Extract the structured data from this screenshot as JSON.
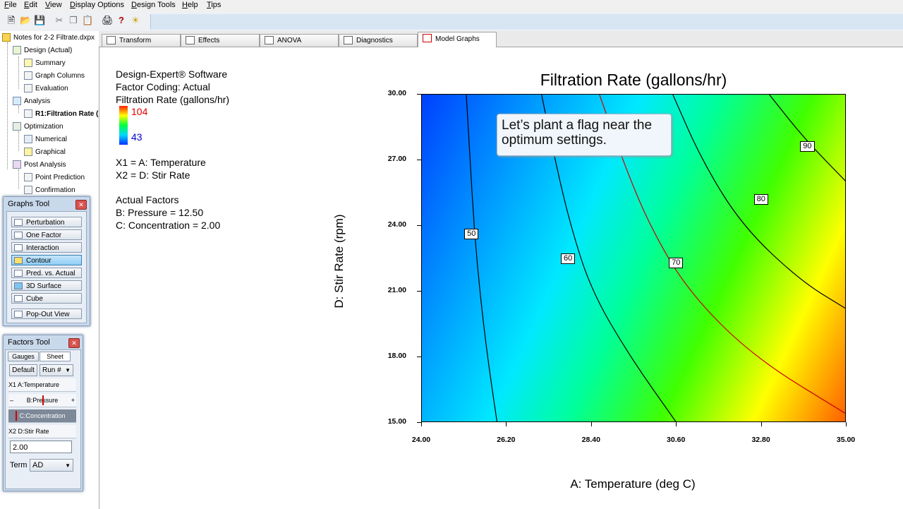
{
  "menu": [
    "File",
    "Edit",
    "View",
    "Display Options",
    "Design Tools",
    "Help",
    "Tips"
  ],
  "tree": {
    "root": "Notes for 2-2 Filtrate.dxpx",
    "items": [
      {
        "label": "Design (Actual)",
        "indent": 1
      },
      {
        "label": "Summary",
        "indent": 2
      },
      {
        "label": "Graph Columns",
        "indent": 2
      },
      {
        "label": "Evaluation",
        "indent": 2
      },
      {
        "label": "Analysis",
        "indent": 1
      },
      {
        "label": "R1:Filtration Rate (",
        "indent": 2
      },
      {
        "label": "Optimization",
        "indent": 1
      },
      {
        "label": "Numerical",
        "indent": 2
      },
      {
        "label": "Graphical",
        "indent": 2
      },
      {
        "label": "Post Analysis",
        "indent": 1
      },
      {
        "label": "Point Prediction",
        "indent": 2
      },
      {
        "label": "Confirmation",
        "indent": 2
      }
    ]
  },
  "graphs_tool": {
    "title": "Graphs Tool",
    "buttons": [
      "Perturbation",
      "One Factor",
      "Interaction",
      "Contour",
      "Pred. vs. Actual",
      "3D Surface",
      "Cube",
      "Pop-Out View"
    ],
    "active": "Contour"
  },
  "factors_tool": {
    "title": "Factors Tool",
    "tab_gauges": "Gauges",
    "tab_sheet": "Sheet",
    "default_btn": "Default",
    "run_select": "Run #",
    "rows": [
      {
        "prefix": "X1",
        "label": "A:Temperature"
      },
      {
        "prefix": "",
        "label": "B:Pressure"
      },
      {
        "prefix": "",
        "label": "C:Concentration"
      },
      {
        "prefix": "X2",
        "label": "D:Stir Rate"
      }
    ],
    "value_input": "2.00",
    "term_label": "Term",
    "term_value": "AD"
  },
  "tabs": [
    "Transform",
    "Effects",
    "ANOVA",
    "Diagnostics",
    "Model Graphs"
  ],
  "active_tab": "Model Graphs",
  "info": {
    "software": "Design-Expert® Software",
    "coding": "Factor Coding: Actual",
    "response": "Filtration Rate (gallons/hr)",
    "legend_high": "104",
    "legend_low": "43",
    "x1": "X1 = A: Temperature",
    "x2": "X2 = D: Stir Rate",
    "actual_factors": "Actual Factors",
    "b_factor": "B: Pressure = 12.50",
    "c_factor": "C: Concentration = 2.00"
  },
  "callout": "Let’s plant a flag near the optimum settings.",
  "chart_data": {
    "type": "contour",
    "title": "Filtration Rate (gallons/hr)",
    "xlabel": "A: Temperature (deg C)",
    "ylabel": "D: Stir Rate (rpm)",
    "xlim": [
      24.0,
      35.0
    ],
    "ylim": [
      15.0,
      30.0
    ],
    "xticks": [
      "24.00",
      "26.20",
      "28.40",
      "30.60",
      "32.80",
      "35.00"
    ],
    "yticks": [
      "15.00",
      "18.00",
      "21.00",
      "24.00",
      "27.00",
      "30.00"
    ],
    "colorscale": {
      "low_color": "#0000ff",
      "high_color": "#ff3000",
      "min": 43,
      "max": 104
    },
    "contours": [
      {
        "level": "50",
        "color": "#000000",
        "points": [
          [
            25.15,
            30.0
          ],
          [
            25.25,
            27.0
          ],
          [
            25.35,
            24.0
          ],
          [
            25.5,
            21.0
          ],
          [
            25.7,
            18.0
          ],
          [
            25.95,
            15.0
          ]
        ]
      },
      {
        "level": "60",
        "color": "#000000",
        "points": [
          [
            27.1,
            30.0
          ],
          [
            27.45,
            27.0
          ],
          [
            27.85,
            24.0
          ],
          [
            28.4,
            21.0
          ],
          [
            29.4,
            18.0
          ],
          [
            30.6,
            15.0
          ]
        ]
      },
      {
        "level": "70",
        "color": "#cc0000",
        "points": [
          [
            28.6,
            30.0
          ],
          [
            29.2,
            27.0
          ],
          [
            29.9,
            24.0
          ],
          [
            30.9,
            21.0
          ],
          [
            32.6,
            18.0
          ],
          [
            35.0,
            15.4
          ]
        ]
      },
      {
        "level": "80",
        "color": "#000000",
        "points": [
          [
            30.5,
            30.0
          ],
          [
            31.25,
            27.0
          ],
          [
            32.3,
            24.0
          ],
          [
            33.8,
            21.5
          ],
          [
            35.0,
            20.2
          ]
        ]
      },
      {
        "level": "90",
        "color": "#000000",
        "points": [
          [
            33.0,
            30.0
          ],
          [
            33.9,
            28.0
          ],
          [
            35.0,
            26.0
          ]
        ]
      }
    ],
    "contour_labels": [
      {
        "text": "50",
        "x": 25.3,
        "y": 23.6
      },
      {
        "text": "60",
        "x": 27.8,
        "y": 22.5
      },
      {
        "text": "70",
        "x": 30.6,
        "y": 22.3
      },
      {
        "text": "80",
        "x": 32.8,
        "y": 25.2
      },
      {
        "text": "90",
        "x": 34.0,
        "y": 27.6
      }
    ]
  }
}
